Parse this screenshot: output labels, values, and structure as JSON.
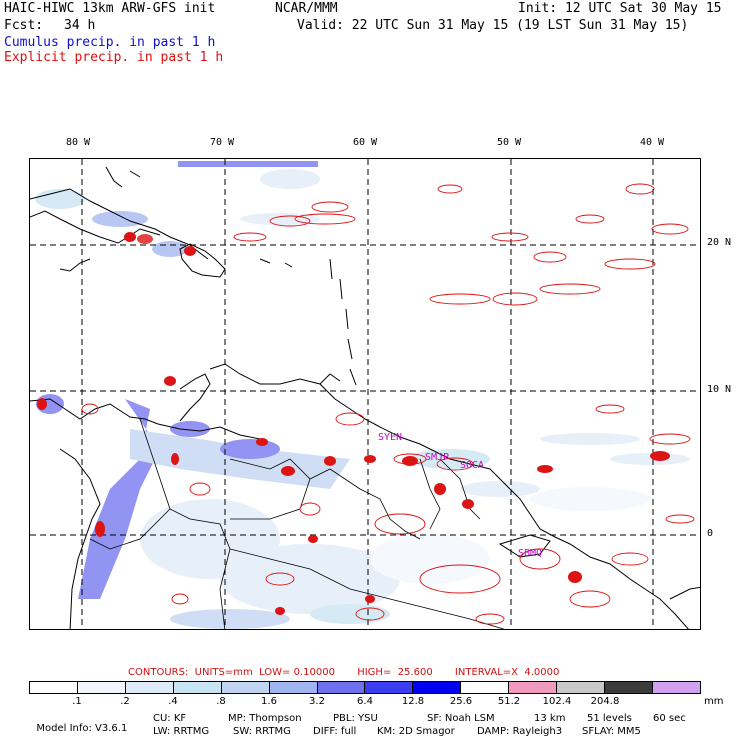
{
  "header": {
    "model_title": "HAIC-HIWC 13km ARW-GFS init",
    "org": "NCAR/MMM",
    "init": "Init: 12 UTC Sat 30 May 15",
    "fcst_label": "Fcst:",
    "fcst_value": "34 h",
    "valid": "Valid: 22 UTC Sun 31 May 15 (19 LST Sun 31 May 15)",
    "cumulus_legend": "Cumulus precip. in past 1 h",
    "explicit_legend": "Explicit precip. in past 1 h"
  },
  "map": {
    "lon_labels": [
      "80 W",
      "70 W",
      "60 W",
      "50 W",
      "40 W"
    ],
    "lat_labels": [
      "20 N",
      "10 N",
      "0"
    ],
    "station_labels": [
      "SYEN",
      "SMJP",
      "SOCA",
      "SBMQ"
    ],
    "colors": {
      "coast": "#000000",
      "grid": "#000000",
      "cumulus": "#3c46e6",
      "explicit": "#dc1414",
      "station": "#c800c8"
    }
  },
  "contours": {
    "text": "CONTOURS:  UNITS=mm  LOW= 0.10000       HIGH=  25.600       INTERVAL=X  4.0000"
  },
  "colorbar": {
    "labels": [
      ".1",
      ".2",
      ".4",
      ".8",
      "1.6",
      "3.2",
      "6.4",
      "12.8",
      "25.6",
      "51.2",
      "102.4",
      "204.8"
    ],
    "units": "mm",
    "colors": [
      "#ffffff",
      "#f2f6fc",
      "#dfeaf8",
      "#c8e4f2",
      "#c0d4f2",
      "#a0b4f0",
      "#6e70ee",
      "#3c3cf0",
      "#0000f0",
      "#ffffff",
      "#f09ac0",
      "#c8c8c8",
      "#3c3c3c",
      "#d2a0f0"
    ]
  },
  "model_info": {
    "line1": [
      "Model Info: V3.6.1",
      "CU: KF",
      "MP: Thompson",
      "PBL: YSU",
      "SF: Noah LSM",
      "13 km",
      "51 levels",
      "60 sec"
    ],
    "line2": [
      "LW: RRTMG",
      "SW: RRTMG",
      "DIFF: full",
      "KM: 2D Smagor",
      "DAMP: Rayleigh3",
      "SFLAY: MM5"
    ]
  }
}
